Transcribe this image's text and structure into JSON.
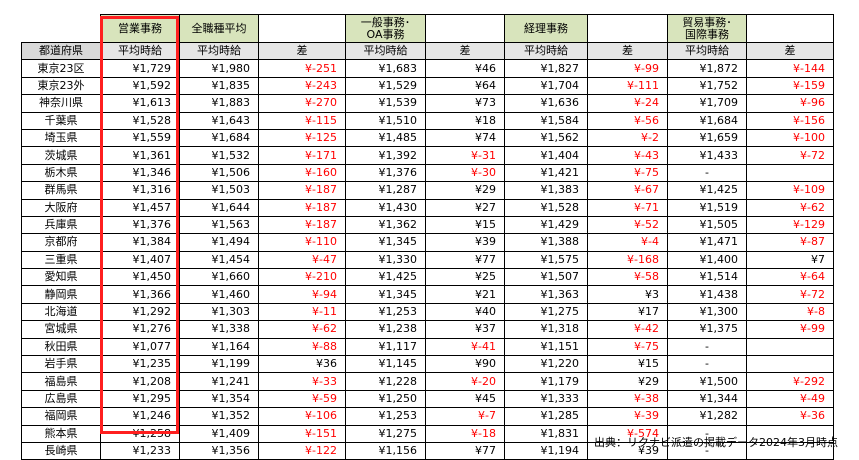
{
  "groups": [
    {
      "label": "",
      "style": "blank"
    },
    {
      "label": "営業事務",
      "style": "g"
    },
    {
      "label": "全職種平均",
      "style": "g"
    },
    {
      "label": "",
      "style": "gw"
    },
    {
      "label": "一般事務･\nOA事務",
      "style": "g"
    },
    {
      "label": "",
      "style": "gw"
    },
    {
      "label": "経理事務",
      "style": "g"
    },
    {
      "label": "",
      "style": "gw"
    },
    {
      "label": "貿易事務･\n国際事務",
      "style": "g"
    },
    {
      "label": "",
      "style": "gw"
    }
  ],
  "headers": [
    "都道府県",
    "平均時給",
    "平均時給",
    "差",
    "平均時給",
    "差",
    "平均時給",
    "差",
    "平均時給",
    "差"
  ],
  "rows": [
    [
      "東京23区",
      "¥1,729",
      "¥1,980",
      "¥-251",
      "¥1,683",
      "¥46",
      "¥1,827",
      "¥-99",
      "¥1,872",
      "¥-144"
    ],
    [
      "東京23外",
      "¥1,592",
      "¥1,835",
      "¥-243",
      "¥1,529",
      "¥64",
      "¥1,704",
      "¥-111",
      "¥1,752",
      "¥-159"
    ],
    [
      "神奈川県",
      "¥1,613",
      "¥1,883",
      "¥-270",
      "¥1,539",
      "¥73",
      "¥1,636",
      "¥-24",
      "¥1,709",
      "¥-96"
    ],
    [
      "千葉県",
      "¥1,528",
      "¥1,643",
      "¥-115",
      "¥1,510",
      "¥18",
      "¥1,584",
      "¥-56",
      "¥1,684",
      "¥-156"
    ],
    [
      "埼玉県",
      "¥1,559",
      "¥1,684",
      "¥-125",
      "¥1,485",
      "¥74",
      "¥1,562",
      "¥-2",
      "¥1,659",
      "¥-100"
    ],
    [
      "茨城県",
      "¥1,361",
      "¥1,532",
      "¥-171",
      "¥1,392",
      "¥-31",
      "¥1,404",
      "¥-43",
      "¥1,433",
      "¥-72"
    ],
    [
      "栃木県",
      "¥1,346",
      "¥1,506",
      "¥-160",
      "¥1,376",
      "¥-30",
      "¥1,421",
      "¥-75",
      "-",
      ""
    ],
    [
      "群馬県",
      "¥1,316",
      "¥1,503",
      "¥-187",
      "¥1,287",
      "¥29",
      "¥1,383",
      "¥-67",
      "¥1,425",
      "¥-109"
    ],
    [
      "大阪府",
      "¥1,457",
      "¥1,644",
      "¥-187",
      "¥1,430",
      "¥27",
      "¥1,528",
      "¥-71",
      "¥1,519",
      "¥-62"
    ],
    [
      "兵庫県",
      "¥1,376",
      "¥1,563",
      "¥-187",
      "¥1,362",
      "¥15",
      "¥1,429",
      "¥-52",
      "¥1,505",
      "¥-129"
    ],
    [
      "京都府",
      "¥1,384",
      "¥1,494",
      "¥-110",
      "¥1,345",
      "¥39",
      "¥1,388",
      "¥-4",
      "¥1,471",
      "¥-87"
    ],
    [
      "三重県",
      "¥1,407",
      "¥1,454",
      "¥-47",
      "¥1,330",
      "¥77",
      "¥1,575",
      "¥-168",
      "¥1,400",
      "¥7"
    ],
    [
      "愛知県",
      "¥1,450",
      "¥1,660",
      "¥-210",
      "¥1,425",
      "¥25",
      "¥1,507",
      "¥-58",
      "¥1,514",
      "¥-64"
    ],
    [
      "静岡県",
      "¥1,366",
      "¥1,460",
      "¥-94",
      "¥1,345",
      "¥21",
      "¥1,363",
      "¥3",
      "¥1,438",
      "¥-72"
    ],
    [
      "北海道",
      "¥1,292",
      "¥1,303",
      "¥-11",
      "¥1,253",
      "¥40",
      "¥1,275",
      "¥17",
      "¥1,300",
      "¥-8"
    ],
    [
      "宮城県",
      "¥1,276",
      "¥1,338",
      "¥-62",
      "¥1,238",
      "¥37",
      "¥1,318",
      "¥-42",
      "¥1,375",
      "¥-99"
    ],
    [
      "秋田県",
      "¥1,077",
      "¥1,164",
      "¥-88",
      "¥1,117",
      "¥-41",
      "¥1,151",
      "¥-75",
      "-",
      ""
    ],
    [
      "岩手県",
      "¥1,235",
      "¥1,199",
      "¥36",
      "¥1,145",
      "¥90",
      "¥1,220",
      "¥15",
      "-",
      ""
    ],
    [
      "福島県",
      "¥1,208",
      "¥1,241",
      "¥-33",
      "¥1,228",
      "¥-20",
      "¥1,179",
      "¥29",
      "¥1,500",
      "¥-292"
    ],
    [
      "広島県",
      "¥1,295",
      "¥1,354",
      "¥-59",
      "¥1,250",
      "¥45",
      "¥1,333",
      "¥-38",
      "¥1,344",
      "¥-49"
    ],
    [
      "福岡県",
      "¥1,246",
      "¥1,352",
      "¥-106",
      "¥1,253",
      "¥-7",
      "¥1,285",
      "¥-39",
      "¥1,282",
      "¥-36"
    ],
    [
      "熊本県",
      "¥1,258",
      "¥1,409",
      "¥-151",
      "¥1,275",
      "¥-18",
      "¥1,831",
      "¥-574",
      "-",
      ""
    ],
    [
      "長崎県",
      "¥1,233",
      "¥1,356",
      "¥-122",
      "¥1,156",
      "¥77",
      "¥1,194",
      "¥39",
      "-",
      ""
    ]
  ],
  "source_note": "出典：リクナビ派遣の掲載データ2024年3月時点",
  "colors": {
    "group_bg": "#d8e4bc",
    "header_bg": "#e6e6e6",
    "negative": "#ff0000",
    "highlight": "#ff1f1f"
  }
}
